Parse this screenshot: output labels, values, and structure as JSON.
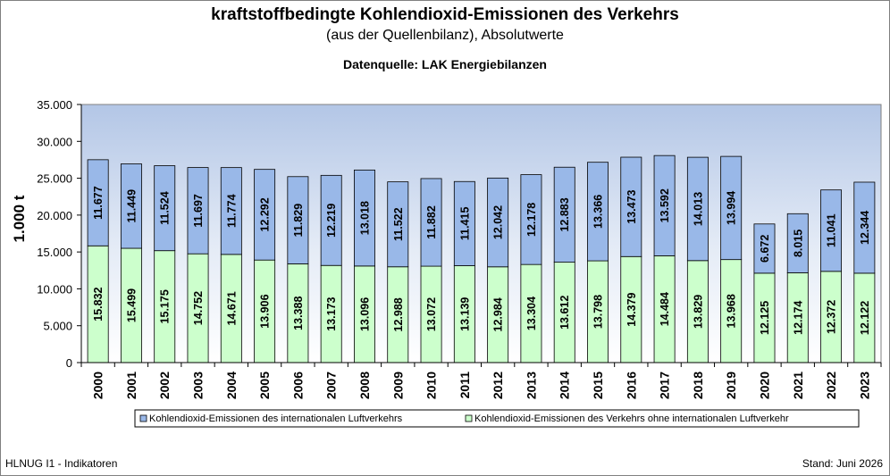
{
  "title": "kraftstoffbedingte Kohlendioxid-Emissionen des Verkehrs",
  "subtitle": "(aus der Quellenbilanz), Absolutwerte",
  "source": "Datenquelle: LAK Energiebilanzen",
  "footer_left": "HLNUG I1 - Indikatoren",
  "footer_right": "Stand: Juni 2026",
  "chart_data": {
    "type": "bar",
    "stacked": true,
    "ylabel": "1.000 t",
    "ylim": [
      0,
      35000
    ],
    "ytick_step": 5000,
    "ytick_labels": [
      "0",
      "5.000",
      "10.000",
      "15.000",
      "20.000",
      "25.000",
      "30.000",
      "35.000"
    ],
    "grid": false,
    "legend_position": "bottom",
    "categories": [
      "2000",
      "2001",
      "2002",
      "2003",
      "2004",
      "2005",
      "2006",
      "2007",
      "2008",
      "2009",
      "2010",
      "2011",
      "2012",
      "2013",
      "2014",
      "2015",
      "2016",
      "2017",
      "2018",
      "2019",
      "2020",
      "2021",
      "2022",
      "2023"
    ],
    "series": [
      {
        "name": "Kohlendioxid-Emissionen des Verkehrs ohne internationalen Luftverkehr",
        "color": "#ccffcc",
        "values": [
          15832,
          15499,
          15175,
          14752,
          14671,
          13906,
          13388,
          13173,
          13096,
          12988,
          13072,
          13139,
          12984,
          13304,
          13612,
          13798,
          14379,
          14484,
          13829,
          13968,
          12125,
          12174,
          12372,
          12122
        ],
        "labels": [
          "15.832",
          "15.499",
          "15.175",
          "14.752",
          "14.671",
          "13.906",
          "13.388",
          "13.173",
          "13.096",
          "12.988",
          "13.072",
          "13.139",
          "12.984",
          "13.304",
          "13.612",
          "13.798",
          "14.379",
          "14.484",
          "13.829",
          "13.968",
          "12.125",
          "12.174",
          "12.372",
          "12.122"
        ]
      },
      {
        "name": "Kohlendioxid-Emissionen des internationalen Luftverkehrs",
        "color": "#99b8e8",
        "values": [
          11677,
          11449,
          11524,
          11697,
          11774,
          12292,
          11829,
          12219,
          13018,
          11522,
          11882,
          11415,
          12042,
          12178,
          12883,
          13366,
          13473,
          13592,
          14013,
          13994,
          6672,
          8015,
          11041,
          12344
        ],
        "labels": [
          "11.677",
          "11.449",
          "11.524",
          "11.697",
          "11.774",
          "12.292",
          "11.829",
          "12.219",
          "13.018",
          "11.522",
          "11.882",
          "11.415",
          "12.042",
          "12.178",
          "12.883",
          "13.366",
          "13.473",
          "13.592",
          "14.013",
          "13.994",
          "6.672",
          "8.015",
          "11.041",
          "12.344"
        ]
      }
    ]
  }
}
